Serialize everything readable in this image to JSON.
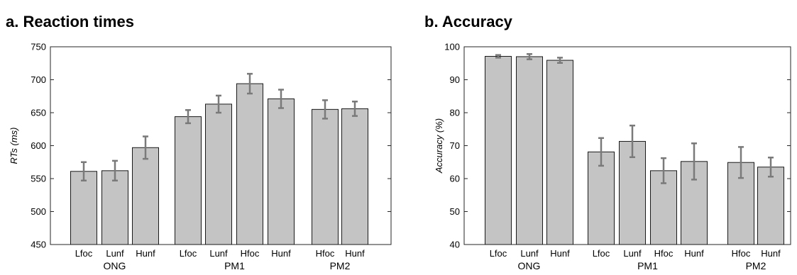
{
  "figure": {
    "bar_color": "#c4c4c4",
    "error_color": "#7a7a7a"
  },
  "chart_data": [
    {
      "type": "bar",
      "title": "a. Reaction times",
      "xlabel": "",
      "ylabel": "RTs (ms)",
      "ylim": [
        450,
        750
      ],
      "yticks": [
        450,
        500,
        550,
        600,
        650,
        700,
        750
      ],
      "grid": false,
      "categories": [
        "Lfoc",
        "Lunf",
        "Hunf",
        "Lfoc",
        "Lunf",
        "Hfoc",
        "Hunf",
        "Hfoc",
        "Hunf"
      ],
      "groups": [
        {
          "label": "ONG",
          "size": 3
        },
        {
          "label": "PM1",
          "size": 4
        },
        {
          "label": "PM2",
          "size": 2
        }
      ],
      "values": [
        561,
        562,
        597,
        644,
        663,
        694,
        671,
        655,
        656
      ],
      "errors": [
        14,
        15,
        17,
        10,
        13,
        15,
        14,
        14,
        11
      ]
    },
    {
      "type": "bar",
      "title": "b. Accuracy",
      "xlabel": "",
      "ylabel": "Accuracy (%)",
      "ylim": [
        40,
        100
      ],
      "yticks": [
        40,
        50,
        60,
        70,
        80,
        90,
        100
      ],
      "grid": false,
      "categories": [
        "Lfoc",
        "Lunf",
        "Hunf",
        "Lfoc",
        "Lunf",
        "Hfoc",
        "Hunf",
        "Hfoc",
        "Hunf"
      ],
      "groups": [
        {
          "label": "ONG",
          "size": 3
        },
        {
          "label": "PM1",
          "size": 4
        },
        {
          "label": "PM2",
          "size": 2
        }
      ],
      "values": [
        97.1,
        97.0,
        95.9,
        68.1,
        71.3,
        62.4,
        65.2,
        64.9,
        63.5
      ],
      "errors": [
        0.4,
        0.8,
        0.8,
        4.2,
        4.8,
        3.8,
        5.5,
        4.7,
        2.9
      ]
    }
  ]
}
